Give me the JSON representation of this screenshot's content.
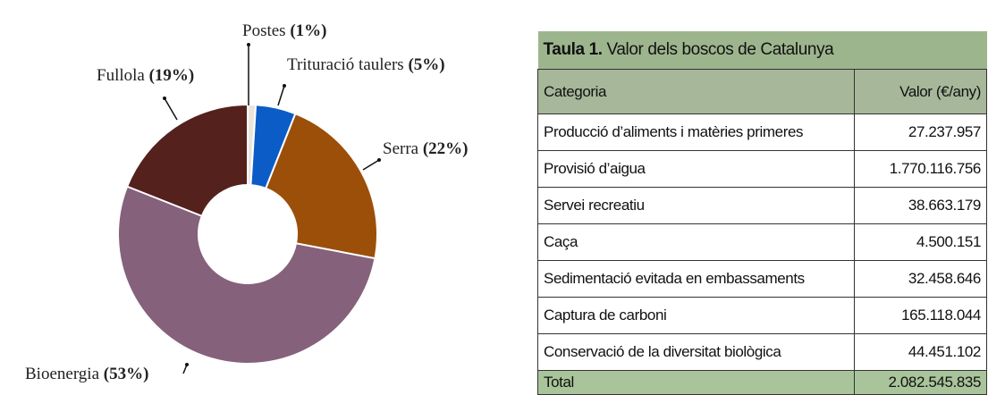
{
  "chart_data": {
    "type": "pie",
    "categories": [
      "Postes",
      "Trituració taulers",
      "Serra",
      "Bioenergia",
      "Fullola"
    ],
    "values": [
      1,
      5,
      22,
      53,
      19
    ],
    "value_labels": [
      "(1%)",
      "(5%)",
      "(22%)",
      "(53%)",
      "(19%)"
    ],
    "colors": [
      "#e9e5dd",
      "#0b5cc6",
      "#9b4f08",
      "#85617b",
      "#55211c"
    ]
  },
  "table": {
    "title_prefix": "Taula 1.",
    "title": "Valor dels boscos de Catalunya",
    "header": [
      "Categoria",
      "Valor (€/any)"
    ],
    "rows": [
      [
        "Producció d’aliments i matèries primeres",
        "27.237.957"
      ],
      [
        "Provisió d’aigua",
        "1.770.116.756"
      ],
      [
        "Servei recreatiu",
        "38.663.179"
      ],
      [
        "Caça",
        "4.500.151"
      ],
      [
        "Sedimentació evitada en embassaments",
        "32.458.646"
      ],
      [
        "Captura de carboni",
        "165.118.044"
      ],
      [
        "Conservació de la diversitat biològica",
        "44.451.102"
      ]
    ],
    "total": [
      "Total",
      "2.082.545.835"
    ]
  }
}
